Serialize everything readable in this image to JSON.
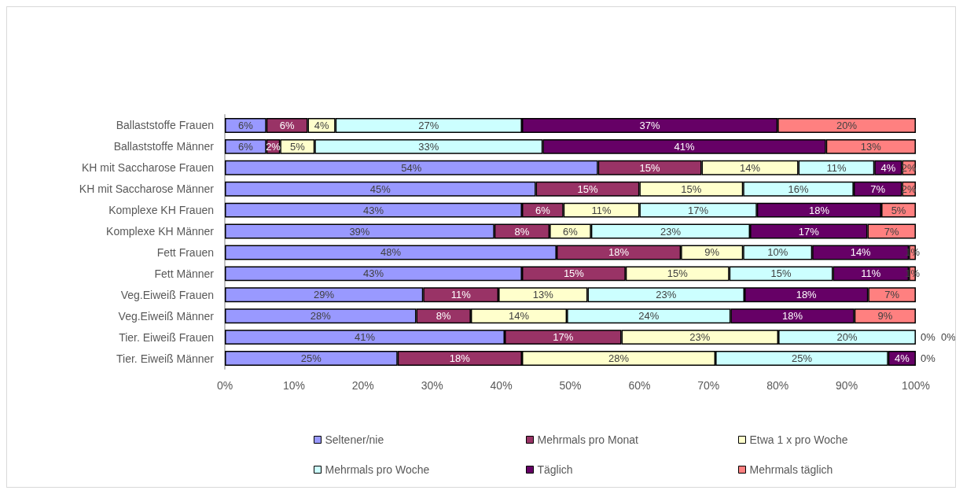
{
  "chart_data": {
    "type": "bar",
    "orientation": "horizontal",
    "stacked": true,
    "categories": [
      "Ballaststoffe Frauen",
      "Ballaststoffe Männer",
      "KH mit Saccharose Frauen",
      "KH mit Saccharose Männer",
      "Komplexe KH Frauen",
      "Komplexe KH Männer",
      "Fett Frauen",
      "Fett Männer",
      "Veg.Eiweiß Frauen",
      "Veg.Eiweiß Männer",
      "Tier. Eiweiß Frauen",
      "Tier. Eiweiß Männer"
    ],
    "series": [
      {
        "name": "Seltener/nie",
        "color": "#9999ff",
        "values": [
          6,
          6,
          54,
          45,
          43,
          39,
          48,
          43,
          28.7,
          27.7,
          40.5,
          25
        ],
        "value_labels": [
          "6%",
          "6%",
          "54%",
          "45%",
          "43%",
          "39%",
          "48%",
          "43%",
          "29%",
          "28%",
          "41%",
          "25%"
        ]
      },
      {
        "name": "Mehrmals pro Monat",
        "color": "#993366",
        "values": [
          6,
          2,
          15,
          15,
          6,
          8,
          18,
          15,
          10.9,
          7.9,
          16.9,
          18
        ],
        "value_labels": [
          "6%",
          "2%",
          "15%",
          "15%",
          "6%",
          "8%",
          "18%",
          "15%",
          "11%",
          "8%",
          "17%",
          "18%"
        ]
      },
      {
        "name": "Etwa 1 x pro Woche",
        "color": "#ffffcc",
        "values": [
          4,
          5,
          14,
          15,
          11,
          6,
          9,
          15,
          12.9,
          13.9,
          22.7,
          28
        ],
        "value_labels": [
          "4%",
          "5%",
          "14%",
          "15%",
          "11%",
          "6%",
          "9%",
          "15%",
          "13%",
          "14%",
          "23%",
          "28%"
        ]
      },
      {
        "name": "Mehrmals pro Woche",
        "color": "#ccffff",
        "values": [
          27,
          33,
          11,
          16,
          17,
          23,
          10,
          15,
          22.7,
          23.7,
          19.9,
          25
        ],
        "value_labels": [
          "27%",
          "33%",
          "11%",
          "16%",
          "17%",
          "23%",
          "10%",
          "15%",
          "23%",
          "24%",
          "20%",
          "25%"
        ]
      },
      {
        "name": "Täglich",
        "color": "#660066",
        "values": [
          37,
          41,
          4,
          7,
          18,
          17,
          14,
          11,
          17.9,
          17.9,
          0,
          4
        ],
        "value_labels": [
          "37%",
          "41%",
          "4%",
          "7%",
          "18%",
          "17%",
          "14%",
          "11%",
          "18%",
          "18%",
          "0%",
          "4%"
        ]
      },
      {
        "name": "Mehrmals täglich",
        "color": "#ff8080",
        "values": [
          20,
          13,
          2,
          2,
          5,
          7,
          1,
          1,
          6.9,
          8.9,
          0,
          0
        ],
        "value_labels": [
          "20%",
          "13%",
          "2%",
          "2%",
          "5%",
          "7%",
          "1%",
          "1%",
          "7%",
          "9%",
          "0%",
          "0%"
        ]
      }
    ],
    "xlim": [
      0,
      100
    ],
    "xticks": [
      {
        "value": 0,
        "label": "0%"
      },
      {
        "value": 10,
        "label": "10%"
      },
      {
        "value": 20,
        "label": "20%"
      },
      {
        "value": 30,
        "label": "30%"
      },
      {
        "value": 40,
        "label": "40%"
      },
      {
        "value": 50,
        "label": "50%"
      },
      {
        "value": 60,
        "label": "60%"
      },
      {
        "value": 70,
        "label": "70%"
      },
      {
        "value": 80,
        "label": "80%"
      },
      {
        "value": 90,
        "label": "90%"
      },
      {
        "value": 100,
        "label": "100%"
      }
    ],
    "legend": "bottom",
    "grid": false
  }
}
